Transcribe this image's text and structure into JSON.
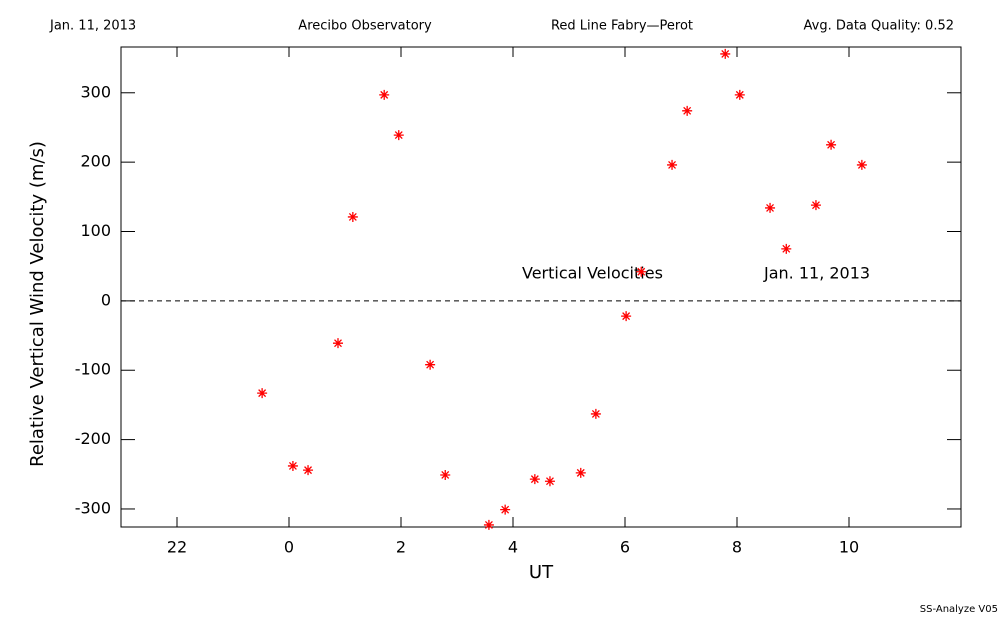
{
  "chart_data": {
    "type": "scatter",
    "header": [
      "Jan. 11, 2013",
      "Arecibo Observatory",
      "Red Line Fabry—Perot",
      "Avg. Data Quality: 0.52"
    ],
    "xlabel": "UT",
    "ylabel": "Relative Vertical Wind Velocity (m/s)",
    "annotations": [
      "Vertical Velocities",
      "Jan. 11, 2013"
    ],
    "footer": "SS-Analyze V05",
    "color": "#ff0000",
    "marker": "asterisk",
    "reference_line": 0,
    "x": [
      -0.48,
      0.07,
      0.34,
      0.875,
      1.14,
      1.7,
      1.96,
      2.52,
      2.79,
      3.57,
      3.86,
      4.39,
      4.66,
      5.21,
      5.48,
      6.02,
      6.29,
      6.84,
      7.11,
      7.79,
      8.05,
      8.59,
      8.88,
      9.41,
      9.68,
      10.23
    ],
    "values": [
      -133,
      -238,
      -244,
      -61,
      121,
      297,
      239,
      -92,
      -251,
      -323,
      -301,
      -257,
      -260,
      -248,
      -163,
      -22,
      42,
      196,
      274,
      356,
      297,
      134,
      75,
      138,
      225,
      196
    ],
    "xlim": [
      -3,
      12
    ],
    "xticks": [
      {
        "value": -2,
        "label": "22"
      },
      0,
      2,
      4,
      6,
      8,
      10
    ],
    "ylim": [
      -326,
      366
    ],
    "yticks": [
      -300,
      -200,
      -100,
      0,
      100,
      200,
      300
    ]
  }
}
